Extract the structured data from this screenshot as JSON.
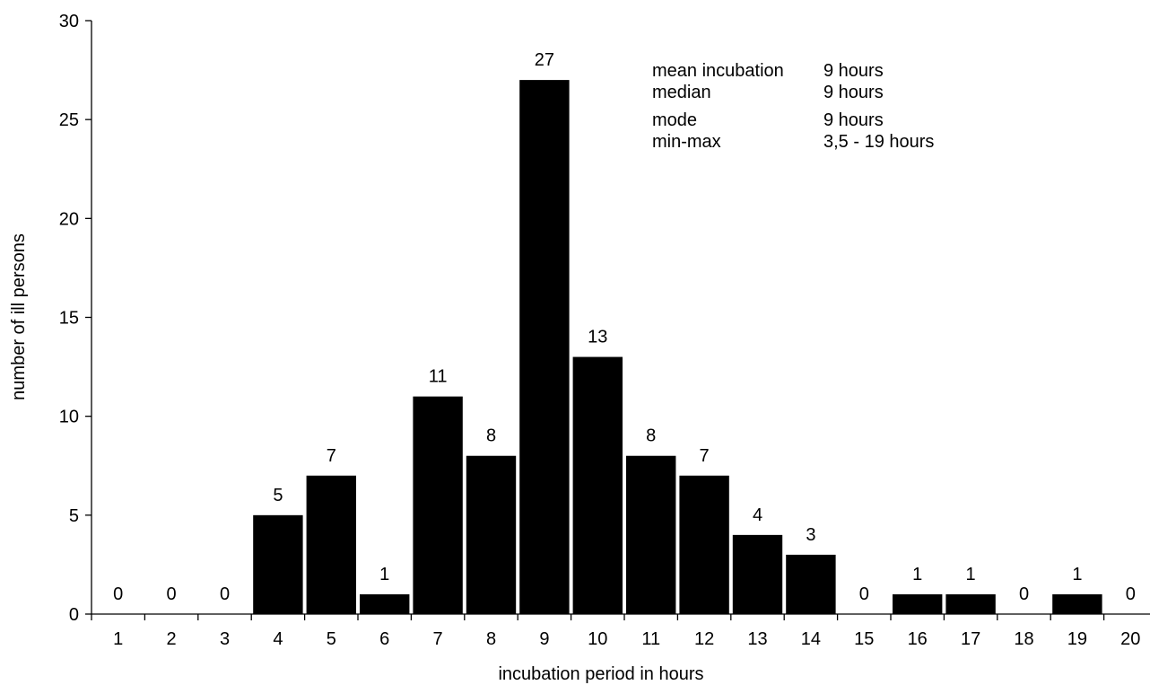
{
  "chart_data": {
    "type": "bar",
    "categories": [
      "1",
      "2",
      "3",
      "4",
      "5",
      "6",
      "7",
      "8",
      "9",
      "10",
      "11",
      "12",
      "13",
      "14",
      "15",
      "16",
      "17",
      "18",
      "19",
      "20"
    ],
    "values": [
      0,
      0,
      0,
      5,
      7,
      1,
      11,
      8,
      27,
      13,
      8,
      7,
      4,
      3,
      0,
      1,
      1,
      0,
      1,
      0
    ],
    "title": "",
    "xlabel": "incubation period in hours",
    "ylabel": "number of ill persons",
    "ylim": [
      0,
      30
    ],
    "yticks": [
      0,
      5,
      10,
      15,
      20,
      25,
      30
    ],
    "grid": false,
    "bar_color": "#000000",
    "data_labels": true,
    "annotation": [
      {
        "label": "mean incubation",
        "value": "9 hours"
      },
      {
        "label": "median",
        "value": "9 hours"
      },
      {
        "label": "mode",
        "value": "9 hours"
      },
      {
        "label": "min-max",
        "value": "3,5 - 19 hours"
      }
    ]
  }
}
